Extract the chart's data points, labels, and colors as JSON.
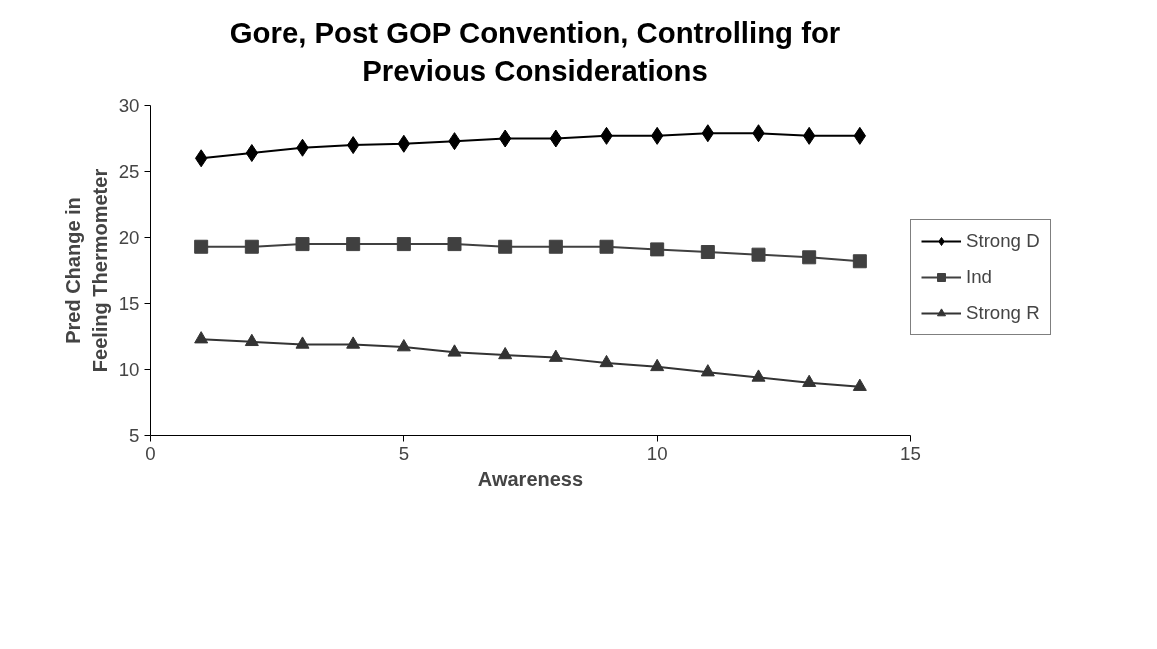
{
  "chart_data": {
    "type": "line",
    "title": "Gore, Post GOP Convention, Controlling for Previous Considerations",
    "xlabel": "Awareness",
    "ylabel": "Pred Change in Feeling Thermometer",
    "x": [
      1,
      2,
      3,
      4,
      5,
      6,
      7,
      8,
      9,
      10,
      11,
      12,
      13,
      14
    ],
    "series": [
      {
        "name": "Strong D",
        "color": "#000000",
        "marker": "diamond",
        "values": [
          26.0,
          26.4,
          26.8,
          27.0,
          27.1,
          27.3,
          27.5,
          27.5,
          27.7,
          27.7,
          27.9,
          27.9,
          27.7,
          27.7
        ]
      },
      {
        "name": "Ind",
        "color": "#404040",
        "marker": "square",
        "values": [
          19.3,
          19.3,
          19.5,
          19.5,
          19.5,
          19.5,
          19.3,
          19.3,
          19.3,
          19.1,
          18.9,
          18.7,
          18.5,
          18.2
        ]
      },
      {
        "name": "Strong R",
        "color": "#333333",
        "marker": "triangle",
        "values": [
          12.3,
          12.1,
          11.9,
          11.9,
          11.7,
          11.3,
          11.1,
          10.9,
          10.5,
          10.2,
          9.8,
          9.4,
          9.0,
          8.7
        ]
      }
    ],
    "xlim": [
      0,
      15
    ],
    "xticks": [
      0,
      5,
      10,
      15
    ],
    "ylim": [
      5,
      30
    ],
    "yticks": [
      5,
      10,
      15,
      20,
      25,
      30
    ],
    "grid": false,
    "legend": "right",
    "line_style": "solid"
  }
}
